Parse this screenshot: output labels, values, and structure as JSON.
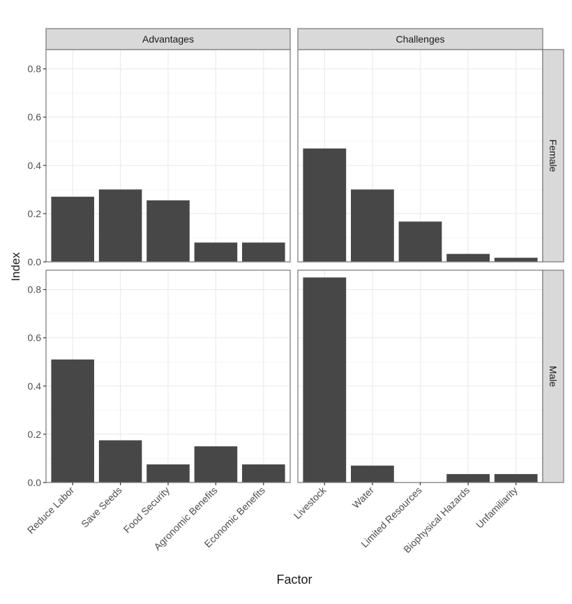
{
  "chart_data": {
    "type": "bar",
    "xlabel": "Factor",
    "ylabel": "Index",
    "ylim": [
      0,
      0.88
    ],
    "yticks": [
      "0.0",
      "0.2",
      "0.4",
      "0.6",
      "0.8"
    ],
    "grid": true,
    "column_facets": [
      "Advantages",
      "Challenges"
    ],
    "row_facets": [
      "Female",
      "Male"
    ],
    "categories": {
      "Advantages": [
        "Reduce Labor",
        "Save Seeds",
        "Food Security",
        "Agronomic Benefits",
        "Economic Benefits"
      ],
      "Challenges": [
        "Livestock",
        "Water",
        "Limited Resources",
        "Biophysical Hazards",
        "Unfamiliarity"
      ]
    },
    "panels": [
      {
        "row": "Female",
        "col": "Advantages",
        "values": [
          0.27,
          0.3,
          0.255,
          0.08,
          0.08
        ]
      },
      {
        "row": "Female",
        "col": "Challenges",
        "values": [
          0.47,
          0.3,
          0.167,
          0.033,
          0.017
        ]
      },
      {
        "row": "Male",
        "col": "Advantages",
        "values": [
          0.51,
          0.175,
          0.075,
          0.15,
          0.075
        ]
      },
      {
        "row": "Male",
        "col": "Challenges",
        "values": [
          0.85,
          0.07,
          0.0,
          0.035,
          0.035
        ]
      }
    ],
    "colors": {
      "bar": "#474747",
      "strip": "#d9d9d9",
      "panel_border": "#7f7f7f",
      "grid_major": "#ebebeb",
      "grid_minor": "#f5f5f5",
      "text": "#1a1a1a",
      "tick_text": "#4d4d4d"
    }
  }
}
